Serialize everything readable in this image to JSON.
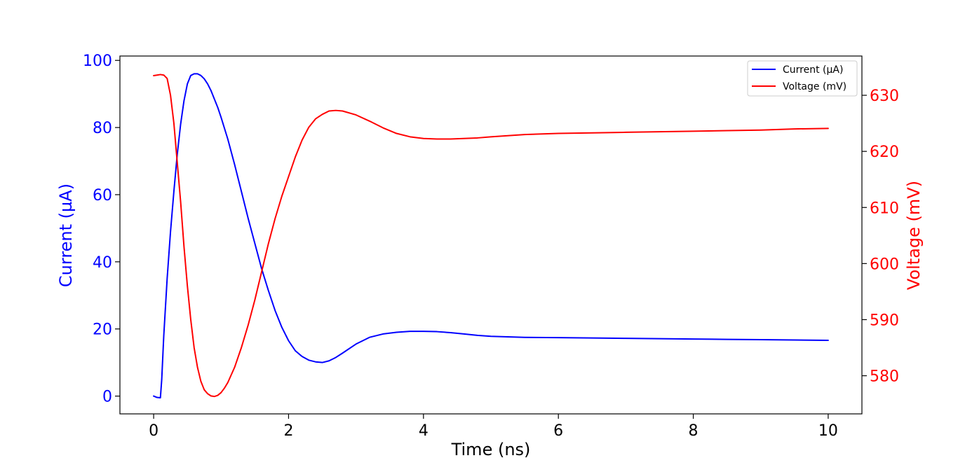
{
  "chart_data": {
    "type": "line",
    "title": "",
    "xlabel": "Time (ns)",
    "ylabel_left": "Current (µA)",
    "ylabel_right": "Voltage (mV)",
    "xlim": [
      -0.5,
      10.5
    ],
    "ylim_left": [
      -5.3,
      101.3
    ],
    "ylim_right": [
      573.2,
      637.0
    ],
    "x_ticks": [
      0,
      2,
      4,
      6,
      8,
      10
    ],
    "y_ticks_left": [
      0,
      20,
      40,
      60,
      80,
      100
    ],
    "y_ticks_right": [
      580,
      590,
      600,
      610,
      620,
      630
    ],
    "grid": false,
    "legend_position": "upper right",
    "series": [
      {
        "name": "Current (µA)",
        "axis": "left",
        "color": "#0000ff",
        "x": [
          0.0,
          0.05,
          0.1,
          0.12,
          0.15,
          0.2,
          0.25,
          0.3,
          0.35,
          0.4,
          0.45,
          0.5,
          0.55,
          0.6,
          0.65,
          0.7,
          0.75,
          0.8,
          0.85,
          0.9,
          0.95,
          1.0,
          1.1,
          1.2,
          1.3,
          1.4,
          1.5,
          1.6,
          1.7,
          1.8,
          1.9,
          2.0,
          2.1,
          2.2,
          2.3,
          2.4,
          2.5,
          2.6,
          2.7,
          2.8,
          3.0,
          3.2,
          3.4,
          3.6,
          3.8,
          4.0,
          4.2,
          4.4,
          4.6,
          4.8,
          5.0,
          5.5,
          6.0,
          6.5,
          7.0,
          7.5,
          8.0,
          8.5,
          9.0,
          9.5,
          10.0
        ],
        "y": [
          0.0,
          -0.4,
          -0.5,
          5.0,
          18.0,
          35.0,
          49.0,
          61.0,
          72.0,
          81.0,
          88.0,
          93.0,
          95.5,
          96.0,
          96.0,
          95.5,
          94.5,
          93.0,
          91.0,
          88.5,
          86.0,
          83.0,
          76.5,
          69.0,
          61.0,
          53.0,
          45.5,
          38.0,
          31.5,
          25.5,
          20.5,
          16.5,
          13.5,
          11.8,
          10.7,
          10.2,
          10.0,
          10.5,
          11.5,
          12.8,
          15.5,
          17.5,
          18.5,
          19.0,
          19.3,
          19.3,
          19.2,
          18.9,
          18.5,
          18.1,
          17.8,
          17.5,
          17.4,
          17.3,
          17.2,
          17.1,
          17.0,
          16.9,
          16.8,
          16.7,
          16.6
        ]
      },
      {
        "name": "Voltage (mV)",
        "axis": "right",
        "color": "#ff0000",
        "x": [
          0.0,
          0.05,
          0.1,
          0.15,
          0.2,
          0.25,
          0.3,
          0.35,
          0.4,
          0.45,
          0.5,
          0.55,
          0.6,
          0.65,
          0.7,
          0.75,
          0.8,
          0.85,
          0.9,
          0.95,
          1.0,
          1.05,
          1.1,
          1.2,
          1.3,
          1.4,
          1.5,
          1.6,
          1.7,
          1.8,
          1.9,
          2.0,
          2.1,
          2.2,
          2.3,
          2.4,
          2.5,
          2.6,
          2.7,
          2.8,
          3.0,
          3.2,
          3.4,
          3.6,
          3.8,
          4.0,
          4.2,
          4.4,
          4.6,
          4.8,
          5.0,
          5.5,
          6.0,
          6.5,
          7.0,
          7.5,
          8.0,
          8.5,
          9.0,
          9.5,
          10.0
        ],
        "y": [
          633.5,
          633.6,
          633.7,
          633.6,
          633.0,
          630.0,
          625.0,
          618.0,
          611.0,
          603.0,
          596.0,
          590.0,
          585.0,
          581.5,
          579.0,
          577.5,
          576.8,
          576.4,
          576.3,
          576.5,
          577.0,
          577.8,
          578.8,
          581.5,
          585.0,
          589.0,
          593.5,
          598.5,
          603.5,
          608.0,
          612.0,
          615.5,
          619.0,
          622.0,
          624.3,
          625.8,
          626.6,
          627.2,
          627.3,
          627.2,
          626.5,
          625.4,
          624.2,
          623.2,
          622.6,
          622.3,
          622.2,
          622.2,
          622.3,
          622.4,
          622.6,
          623.0,
          623.2,
          623.3,
          623.4,
          623.5,
          623.6,
          623.7,
          623.8,
          624.0,
          624.1
        ]
      }
    ]
  }
}
